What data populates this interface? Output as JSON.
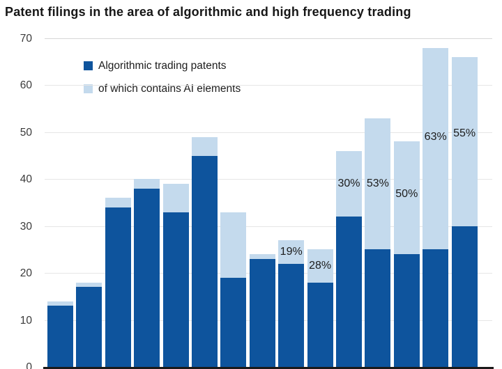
{
  "chart_data": {
    "type": "bar",
    "stacked": true,
    "title": "Patent filings in the area of algorithmic and high frequency trading",
    "series": [
      {
        "name": "Algorithmic trading patents",
        "color": "#0e549d",
        "values": [
          13,
          17,
          34,
          38,
          33,
          45,
          19,
          23,
          22,
          18,
          32,
          25,
          24,
          25,
          30
        ]
      },
      {
        "name": "of which contains AI elements",
        "color": "#c4daed",
        "values": [
          1,
          1,
          2,
          2,
          6,
          4,
          14,
          1,
          5,
          7,
          14,
          28,
          24,
          43,
          36
        ]
      }
    ],
    "totals": [
      14,
      18,
      36,
      40,
      39,
      49,
      33,
      24,
      27,
      25,
      46,
      53,
      48,
      68,
      66
    ],
    "percent_labels": [
      "",
      "",
      "",
      "",
      "",
      "",
      "",
      "",
      "19%",
      "28%",
      "30%",
      "53%",
      "50%",
      "63%",
      "55%"
    ],
    "ylim": [
      0,
      70
    ],
    "yticks": [
      0,
      10,
      20,
      30,
      40,
      50,
      60,
      70
    ],
    "grid": "horizontal",
    "legend_position": "inside-top-left",
    "label_dy": [
      0,
      0,
      0,
      0,
      0,
      0,
      0,
      0,
      0,
      0,
      0,
      0,
      -5,
      -16,
      -11
    ]
  }
}
